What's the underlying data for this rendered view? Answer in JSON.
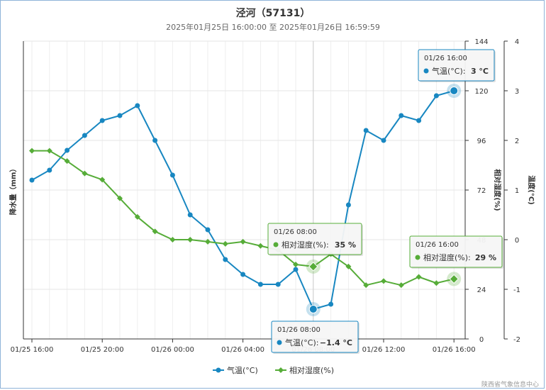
{
  "chart_data": {
    "type": "line",
    "title": "泾河（57131）",
    "subtitle": "2025年01月25日 16:00:00 至 2025年01月26日 16:59:59",
    "categories": [
      "01/25 16:00",
      "01/25 17:00",
      "01/25 18:00",
      "01/25 19:00",
      "01/25 20:00",
      "01/25 21:00",
      "01/25 22:00",
      "01/25 23:00",
      "01/26 00:00",
      "01/26 01:00",
      "01/26 02:00",
      "01/26 03:00",
      "01/26 04:00",
      "01/26 05:00",
      "01/26 06:00",
      "01/26 07:00",
      "01/26 08:00",
      "01/26 09:00",
      "01/26 10:00",
      "01/26 11:00",
      "01/26 12:00",
      "01/26 13:00",
      "01/26 14:00",
      "01/26 15:00",
      "01/26 16:00"
    ],
    "x_tick_labels": [
      "01/25 16:00",
      "01/25 20:00",
      "01/26 00:00",
      "01/26 04:00",
      "01/26 08:00",
      "01/26 12:00",
      "01/26 16:00"
    ],
    "x_tick_indices": [
      0,
      4,
      8,
      12,
      16,
      20,
      24
    ],
    "series": [
      {
        "name": "气温(°C)",
        "color": "#1887c1",
        "axis": "temp",
        "values": [
          1.2,
          1.4,
          1.8,
          2.1,
          2.4,
          2.5,
          2.7,
          2.0,
          1.3,
          0.5,
          0.2,
          -0.4,
          -0.7,
          -0.9,
          -0.9,
          -0.6,
          -1.4,
          -1.3,
          0.7,
          2.2,
          2.0,
          2.5,
          2.4,
          2.9,
          3.0
        ]
      },
      {
        "name": "相对湿度(%)",
        "color": "#56ac38",
        "axis": "rh",
        "values": [
          91,
          91,
          86,
          80,
          77,
          68,
          59,
          52,
          48,
          48,
          47,
          46,
          47,
          45,
          43,
          36,
          35,
          41,
          35,
          26,
          28,
          26,
          30,
          27,
          29
        ]
      }
    ],
    "axes": {
      "left": {
        "title": "降水量（mm）",
        "ticks": []
      },
      "rh": {
        "title": "相对湿度(%)",
        "min": 0,
        "max": 144,
        "ticks": [
          "0",
          "24",
          "48",
          "72",
          "96",
          "120",
          "144"
        ]
      },
      "temp": {
        "title": "温度(°C)",
        "min": -2,
        "max": 4,
        "ticks": [
          "-2",
          "-1",
          "0",
          "1",
          "2",
          "3",
          "4"
        ]
      }
    },
    "legend": [
      "气温(°C)",
      "相对湿度(%)"
    ],
    "legend_position": "bottom-center",
    "tooltips": [
      {
        "time": "01/26 16:00",
        "label": "气温(°C):",
        "value": "3 °C",
        "color": "#1887c1"
      },
      {
        "time": "01/26 08:00",
        "label": "相对湿度(%):",
        "value": "35 %",
        "color": "#56ac38"
      },
      {
        "time": "01/26 08:00",
        "label": "气温(°C):",
        "value": "−1.4 °C",
        "color": "#1887c1"
      },
      {
        "time": "01/26 16:00",
        "label": "相对湿度(%):",
        "value": "29 %",
        "color": "#56ac38"
      }
    ],
    "crosshair_label": "01/26 08:00"
  },
  "credit": "陕西省气象信息中心"
}
